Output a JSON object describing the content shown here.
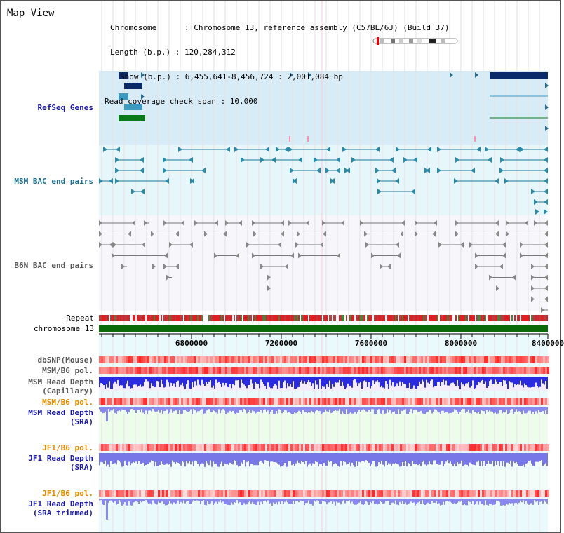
{
  "title": "Map View",
  "info": {
    "chromosome": "Chromosome      : Chromosome 13, reference assembly (C57BL/6J) (Build 37)",
    "length": "Length (b.p.) : 120,284,312",
    "show": "Show (b.p.) : 6,455,641-8,456,724 : 2,001,084 bp",
    "read_coverage": "Read coverage check span : 10,000"
  },
  "tracks": {
    "refseq": "RefSeq Genes",
    "msm_bac": "MSM BAC end pairs",
    "b6n_bac": "B6N BAC end pairs",
    "repeat": "Repeat",
    "chromosome": "chromosome 13",
    "dbsnp": "dbSNP(Mouse)",
    "msm_b6_pol_1": "MSM/B6 pol.",
    "msm_read_depth_cap": "MSM Read Depth\n(Capillary)",
    "msm_b6_pol_2": "MSM/B6 pol.",
    "msm_read_depth_sra": "MSM Read Depth\n(SRA)",
    "jf1_b6_pol_1": "JF1/B6 pol.",
    "jf1_read_depth_sra": "JF1 Read Depth\n(SRA)",
    "jf1_b6_pol_2": "JF1/B6 pol.",
    "jf1_read_depth_trimmed": "JF1 Read Depth\n(SRA trimmed)"
  },
  "axis": {
    "ticks": [
      "6800000",
      "7200000",
      "7600000",
      "8000000",
      "8400000"
    ]
  },
  "colors": {
    "refseq_bg": "#d8ecf8",
    "msm_bg": "#e6f6fa",
    "b6n_bg": "#f7f7fb",
    "lower_bg": "#eafafc",
    "label_blue": "#1a1aa0",
    "label_teal": "#1a6a8a",
    "label_orange": "#e08a00",
    "gene_navy": "#0a2a6a",
    "gene_green": "#0a7a1a",
    "chrom_green": "#0a6a0a",
    "bac_teal": "#1a7a9a"
  }
}
